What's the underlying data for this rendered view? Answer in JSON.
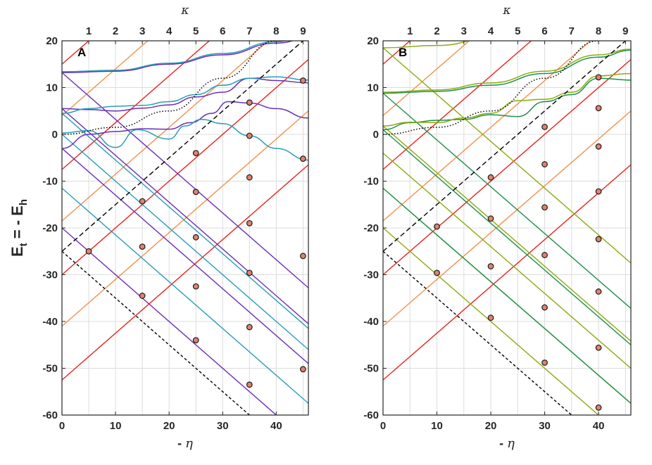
{
  "chart_data": [
    {
      "type": "line",
      "panel_label": "A",
      "xlabel": "- η",
      "ylabel": "Et = - Eh",
      "top_axis_label": "κ",
      "xlim": [
        0,
        46
      ],
      "ylim": [
        -60,
        20
      ],
      "x_ticks": [
        0,
        10,
        20,
        30,
        40
      ],
      "y_ticks": [
        20,
        10,
        0,
        -10,
        -20,
        -30,
        -40,
        -50,
        -60
      ],
      "top_ticks": [
        1,
        2,
        3,
        4,
        5,
        6,
        7,
        8,
        9
      ],
      "top_tick_positions": [
        5,
        10,
        15,
        20,
        25,
        30,
        35,
        40,
        45
      ],
      "grid": true,
      "diabatic_lines": {
        "slope": 1.0,
        "red_intercepts": [
          -52.5,
          -30,
          -7.5,
          15,
          37.5,
          60,
          82.5,
          105
        ],
        "orange_intercepts": [
          -41,
          -18.5,
          4,
          26.5,
          49,
          71.5,
          94,
          116.5
        ],
        "falling_slope": -1.0,
        "purple_intercepts": [
          -20,
          -3,
          5.5,
          13.2
        ],
        "teal_intercepts": [
          -11.5,
          0,
          4.5
        ]
      },
      "series": [
        {
          "color": "#6a2fb8",
          "points": [
            [
              0,
              -3
            ],
            [
              5,
              0
            ],
            [
              10,
              0.6
            ],
            [
              15,
              1.2
            ],
            [
              20,
              1.1
            ],
            [
              24,
              2.5
            ],
            [
              28,
              4.5
            ],
            [
              31,
              7
            ],
            [
              35,
              6.7
            ],
            [
              40,
              5.5
            ],
            [
              46,
              3.5
            ]
          ]
        },
        {
          "color": "#2b9cb8",
          "points": [
            [
              0,
              0.3
            ],
            [
              5,
              0.8
            ],
            [
              10,
              -2.8
            ],
            [
              14,
              1
            ],
            [
              20,
              -1
            ],
            [
              23,
              1.8
            ],
            [
              26,
              3.2
            ],
            [
              30,
              2.3
            ],
            [
              35,
              -0.3
            ],
            [
              40,
              -3
            ],
            [
              46,
              -5.5
            ]
          ]
        },
        {
          "color": "#6a2fb8",
          "points": [
            [
              0,
              5.5
            ],
            [
              5,
              5.3
            ],
            [
              10,
              5
            ],
            [
              15,
              5.6
            ],
            [
              20,
              6.3
            ],
            [
              25,
              8
            ],
            [
              30,
              9
            ],
            [
              35,
              12
            ],
            [
              40,
              11.5
            ],
            [
              46,
              11
            ]
          ]
        },
        {
          "color": "#2b9cb8",
          "points": [
            [
              0,
              4.5
            ],
            [
              5,
              5.5
            ],
            [
              10,
              6
            ],
            [
              15,
              6.2
            ],
            [
              20,
              7
            ],
            [
              25,
              8.5
            ],
            [
              30,
              10.5
            ],
            [
              35,
              12
            ],
            [
              40,
              12.3
            ],
            [
              46,
              11.6
            ]
          ]
        },
        {
          "color": "#6a2fb8",
          "points": [
            [
              0,
              13.2
            ],
            [
              10,
              13.5
            ],
            [
              20,
              15
            ],
            [
              30,
              17
            ],
            [
              40,
              19.5
            ],
            [
              46,
              20.5
            ]
          ]
        },
        {
          "color": "#2b9cb8",
          "points": [
            [
              0,
              13.4
            ],
            [
              10,
              13.7
            ],
            [
              20,
              15.2
            ],
            [
              30,
              17.3
            ],
            [
              40,
              19.8
            ],
            [
              46,
              21
            ]
          ]
        }
      ],
      "dotted_curve": {
        "points": [
          [
            0,
            0
          ],
          [
            10,
            1.5
          ],
          [
            20,
            5
          ],
          [
            30,
            12
          ],
          [
            40,
            20
          ]
        ]
      },
      "dashed_lines": [
        {
          "style": "dash",
          "x1": 0,
          "y1": -25,
          "x2": 46,
          "y2": 21
        },
        {
          "style": "short-dash",
          "x1": 0,
          "y1": -25,
          "x2": 35,
          "y2": -60
        }
      ],
      "markers": [
        [
          5,
          -25
        ],
        [
          15,
          -14.3
        ],
        [
          15,
          -24
        ],
        [
          15,
          -34.5
        ],
        [
          25,
          -4
        ],
        [
          25,
          -12.3
        ],
        [
          25,
          -22
        ],
        [
          25,
          -32.5
        ],
        [
          25,
          -44
        ],
        [
          35,
          6.8
        ],
        [
          35,
          -0.3
        ],
        [
          35,
          -9.2
        ],
        [
          35,
          -19
        ],
        [
          35,
          -29.6
        ],
        [
          35,
          -41.2
        ],
        [
          35,
          -53.5
        ],
        [
          45,
          11.5
        ],
        [
          45,
          -5.2
        ],
        [
          45,
          -26
        ],
        [
          45,
          -50.2
        ]
      ]
    },
    {
      "type": "line",
      "panel_label": "B",
      "xlabel": "- η",
      "ylabel": "",
      "top_axis_label": "κ",
      "xlim": [
        0,
        46
      ],
      "ylim": [
        -60,
        20
      ],
      "x_ticks": [
        0,
        10,
        20,
        30,
        40
      ],
      "y_ticks": [
        20,
        10,
        0,
        -10,
        -20,
        -30,
        -40,
        -50,
        -60
      ],
      "top_ticks": [
        1,
        2,
        3,
        4,
        5,
        6,
        7,
        8,
        9
      ],
      "top_tick_positions": [
        5,
        10,
        15,
        20,
        25,
        30,
        35,
        40,
        45
      ],
      "grid": true,
      "diabatic_lines": {
        "slope": 1.0,
        "red_intercepts": [
          -52.5,
          -30,
          -7.5,
          15,
          37.5,
          60,
          82.5,
          105
        ],
        "orange_intercepts": [
          -41,
          -18.5,
          4,
          26.5,
          49,
          71.5,
          94,
          116.5
        ],
        "falling_slope": -1.0,
        "olive_intercepts": [
          -20,
          -11.5,
          -4,
          1.8,
          18.5
        ],
        "green_intercepts": [
          -11.5,
          1,
          8.8
        ]
      },
      "series": [
        {
          "color": "#1f8f4a",
          "points": [
            [
              0,
              1
            ],
            [
              5,
              2.5
            ],
            [
              10,
              3
            ],
            [
              15,
              3.2
            ],
            [
              20,
              4.2
            ],
            [
              25,
              3.8
            ],
            [
              30,
              7
            ],
            [
              35,
              8.5
            ],
            [
              40,
              12
            ],
            [
              46,
              11.6
            ]
          ]
        },
        {
          "color": "#8aab10",
          "points": [
            [
              0,
              1.8
            ],
            [
              5,
              2.6
            ],
            [
              10,
              2.5
            ],
            [
              15,
              3.5
            ],
            [
              20,
              4.5
            ],
            [
              25,
              7.2
            ],
            [
              30,
              7.5
            ],
            [
              35,
              9
            ],
            [
              40,
              12.5
            ],
            [
              46,
              13
            ]
          ]
        },
        {
          "color": "#1f8f4a",
          "points": [
            [
              0,
              8.8
            ],
            [
              10,
              9.2
            ],
            [
              20,
              10.5
            ],
            [
              30,
              13
            ],
            [
              40,
              16.5
            ],
            [
              46,
              18
            ]
          ]
        },
        {
          "color": "#8aab10",
          "points": [
            [
              0,
              9
            ],
            [
              10,
              9.5
            ],
            [
              20,
              11
            ],
            [
              30,
              13.5
            ],
            [
              40,
              17
            ],
            [
              46,
              18.2
            ]
          ]
        },
        {
          "color": "#8aab10",
          "points": [
            [
              0,
              18.5
            ],
            [
              10,
              19
            ],
            [
              20,
              20.5
            ],
            [
              30,
              22
            ]
          ]
        }
      ],
      "dotted_curve": {
        "points": [
          [
            0,
            0
          ],
          [
            10,
            1.5
          ],
          [
            20,
            5
          ],
          [
            30,
            12
          ],
          [
            40,
            20
          ]
        ]
      },
      "dashed_lines": [
        {
          "style": "dash",
          "x1": 0,
          "y1": -25,
          "x2": 46,
          "y2": 21
        },
        {
          "style": "short-dash",
          "x1": 0,
          "y1": -25,
          "x2": 35,
          "y2": -60
        }
      ],
      "markers": [
        [
          10,
          -19.7
        ],
        [
          10,
          -29.6
        ],
        [
          20,
          -9.2
        ],
        [
          20,
          -18
        ],
        [
          20,
          -28.2
        ],
        [
          20,
          -39.2
        ],
        [
          30,
          1.6
        ],
        [
          30,
          -6.4
        ],
        [
          30,
          -15.6
        ],
        [
          30,
          -25.8
        ],
        [
          30,
          -37
        ],
        [
          30,
          -48.8
        ],
        [
          40,
          12.2
        ],
        [
          40,
          5.6
        ],
        [
          40,
          -2.6
        ],
        [
          40,
          -12.2
        ],
        [
          40,
          -22.4
        ],
        [
          40,
          -33.6
        ],
        [
          40,
          -45.6
        ],
        [
          40,
          -58.4
        ]
      ]
    }
  ],
  "colors": {
    "red": "#e8231e",
    "orange": "#f2904c",
    "grid": "#dcdcdc",
    "marker_fill": "#e0826e",
    "marker_edge": "#1a1a1a"
  }
}
